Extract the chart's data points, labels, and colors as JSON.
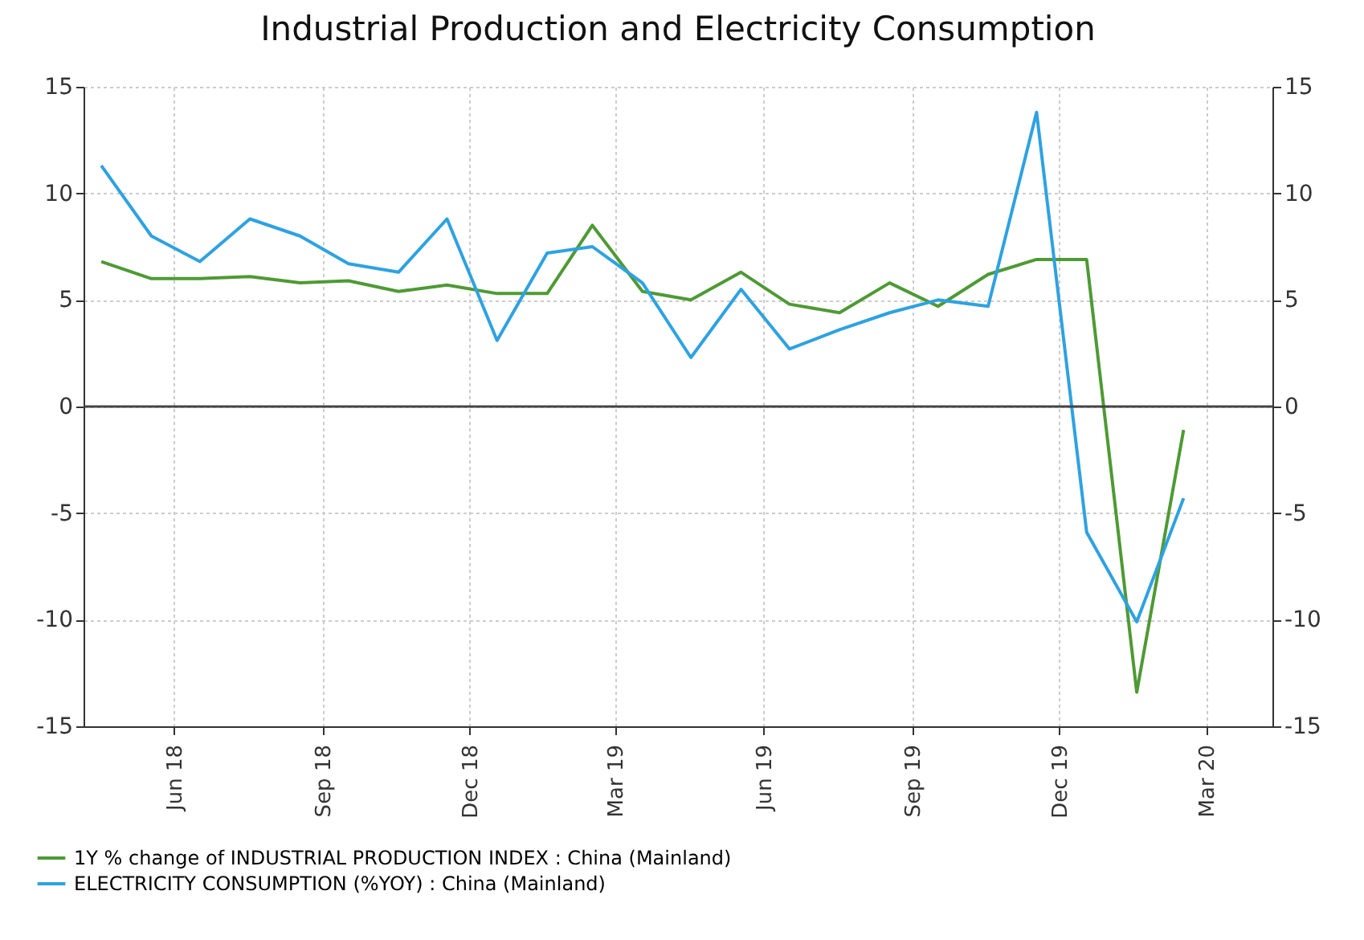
{
  "chart_data": {
    "type": "line",
    "title": "Industrial Production and Electricity Consumption",
    "x": [
      "2018-05",
      "2018-06",
      "2018-07",
      "2018-08",
      "2018-09",
      "2018-10",
      "2018-11",
      "2018-12",
      "2019-01",
      "2019-02",
      "2019-03",
      "2019-04",
      "2019-05",
      "2019-06",
      "2019-07",
      "2019-08",
      "2019-09",
      "2019-10",
      "2019-11",
      "2019-12",
      "2020-01",
      "2020-02",
      "2020-03"
    ],
    "series": [
      {
        "name": "1Y % change of INDUSTRIAL PRODUCTION INDEX : China (Mainland)",
        "color": "#4e9a34",
        "values": [
          6.8,
          6.0,
          6.0,
          6.1,
          5.8,
          5.9,
          5.4,
          5.7,
          5.3,
          5.3,
          8.5,
          5.4,
          5.0,
          6.3,
          4.8,
          4.4,
          5.8,
          4.7,
          6.2,
          6.9,
          6.9,
          -13.4,
          -1.1
        ]
      },
      {
        "name": "ELECTRICITY CONSUMPTION (%YOY) : China (Mainland)",
        "color": "#2ea2e0",
        "values": [
          11.3,
          8.0,
          6.8,
          8.8,
          8.0,
          6.7,
          6.3,
          8.8,
          3.1,
          7.2,
          7.5,
          5.8,
          2.3,
          5.5,
          2.7,
          3.6,
          4.4,
          5.0,
          4.7,
          13.8,
          -5.9,
          -10.1,
          -4.3
        ]
      }
    ],
    "xlim": [
      "2018-04-20",
      "2020-04-25"
    ],
    "xticks": [
      {
        "value": "2018-06-15",
        "label": "Jun 18"
      },
      {
        "value": "2018-09-15",
        "label": "Sep 18"
      },
      {
        "value": "2018-12-15",
        "label": "Dec 18"
      },
      {
        "value": "2019-03-15",
        "label": "Mar 19"
      },
      {
        "value": "2019-06-15",
        "label": "Jun 19"
      },
      {
        "value": "2019-09-15",
        "label": "Sep 19"
      },
      {
        "value": "2019-12-15",
        "label": "Dec 19"
      },
      {
        "value": "2020-03-15",
        "label": "Mar 20"
      }
    ],
    "ylim": [
      -15,
      15
    ],
    "yticks": [
      -15,
      -10,
      -5,
      0,
      5,
      10,
      15
    ],
    "y2lim": [
      -15,
      15
    ],
    "y2ticks": [
      -15,
      -10,
      -5,
      0,
      5,
      10,
      15
    ],
    "ref_lines": [
      {
        "axis": "y",
        "value": 0,
        "color": "#444444"
      }
    ],
    "grid": true,
    "legend": "bottom"
  }
}
